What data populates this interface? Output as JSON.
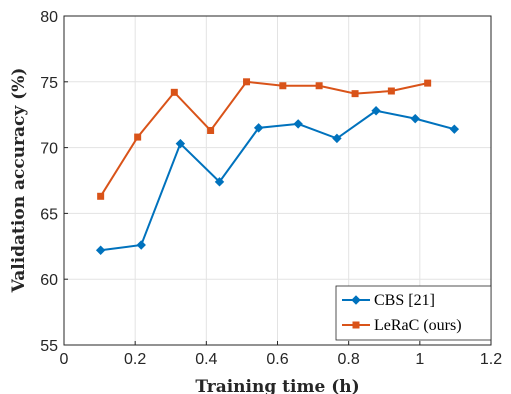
{
  "chart_data": {
    "type": "line",
    "title": "",
    "xlabel": "Training time (h)",
    "ylabel": "Validation accuracy (%)",
    "xlim": [
      0,
      1.2
    ],
    "ylim": [
      55,
      80
    ],
    "xticks": [
      "0",
      "0.2",
      "0.4",
      "0.6",
      "0.8",
      "1",
      "1.2"
    ],
    "yticks": [
      "55",
      "60",
      "65",
      "70",
      "75",
      "80"
    ],
    "grid": true,
    "legend_position": "bottom-right",
    "series": [
      {
        "name": "CBS [21]",
        "color": "#0072BD",
        "marker": "diamond",
        "x": [
          0.103,
          0.217,
          0.327,
          0.437,
          0.547,
          0.658,
          0.767,
          0.877,
          0.987,
          1.097
        ],
        "y": [
          62.2,
          62.6,
          70.3,
          67.4,
          71.5,
          71.8,
          70.7,
          72.8,
          72.2,
          71.4
        ]
      },
      {
        "name": "LeRaC (ours)",
        "color": "#D95319",
        "marker": "square",
        "x": [
          0.103,
          0.207,
          0.31,
          0.412,
          0.513,
          0.615,
          0.717,
          0.818,
          0.92,
          1.022
        ],
        "y": [
          66.3,
          70.8,
          74.2,
          71.3,
          75.0,
          74.7,
          74.7,
          74.1,
          74.3,
          74.9
        ]
      }
    ]
  }
}
